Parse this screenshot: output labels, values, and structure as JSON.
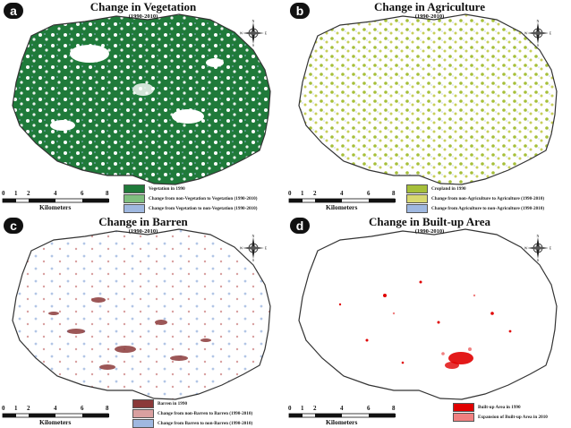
{
  "panels": [
    {
      "label": "a",
      "title": "Change in Vegetation",
      "years": "(1990-2010)",
      "legend": [
        {
          "text": "Vegetation in 1990",
          "color": "#1f7a3a"
        },
        {
          "text": "Change from non-Vegetation to Vegetation (1990-2010)",
          "color": "#7fbf7f"
        },
        {
          "text": "Change from Vegetation to non-Vegetation (1990-2010)",
          "color": "#9fb8e0"
        }
      ]
    },
    {
      "label": "b",
      "title": "Change in Agriculture",
      "years": "(1990-2010)",
      "legend": [
        {
          "text": "Cropland in 1990",
          "color": "#a6bf3a"
        },
        {
          "text": "Change from non-Agriculture to Agriculture (1990-2010)",
          "color": "#d8d870"
        },
        {
          "text": "Change from Agriculture to non-Agriculture (1990-2010)",
          "color": "#9fb8e0"
        }
      ]
    },
    {
      "label": "c",
      "title": "Change in Barren",
      "years": "(1990-2010)",
      "legend": [
        {
          "text": "Barren in 1990",
          "color": "#8b3a3a"
        },
        {
          "text": "Change from non-Barren to Barren (1990-2010)",
          "color": "#d9a0a0"
        },
        {
          "text": "Change from Barren to non-Barren (1990-2010)",
          "color": "#9fb8e0"
        }
      ]
    },
    {
      "label": "d",
      "title": "Change in Built-up Area",
      "years": "(1990-2010)",
      "legend": [
        {
          "text": "Built-up Area in 1990",
          "color": "#e00000"
        },
        {
          "text": "Expansion of Built-up Area in 2010",
          "color": "#f08080"
        }
      ]
    }
  ],
  "scale": {
    "ticks": [
      "0",
      "1",
      "2",
      "4",
      "6",
      "8"
    ],
    "unit": "Kilometers"
  },
  "north_arrow": {
    "n": "N",
    "s": "S",
    "e": "E",
    "w": "W"
  },
  "colors": {
    "vegetation": "#1f7a3a",
    "agriculture": "#a6bf3a",
    "barren": "#8b3a3a",
    "builtup": "#e00000",
    "loss": "#9fb8e0",
    "boundary": "#333333"
  }
}
